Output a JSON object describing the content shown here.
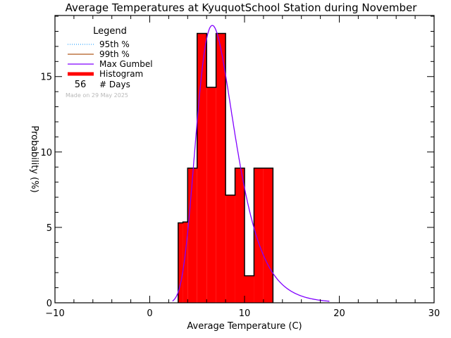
{
  "chart_data": {
    "type": "bar",
    "title": "Average Temperatures at KyuquotSchool Station during November",
    "xlabel": "Average Temperature (C)",
    "ylabel": "Probability (%)",
    "xlim": [
      -10,
      30
    ],
    "ylim": [
      0,
      19.05
    ],
    "x_ticks": [
      -10,
      0,
      10,
      20,
      30
    ],
    "x_tick_labels": [
      "−10",
      "0",
      "10",
      "20",
      "30"
    ],
    "y_ticks": [
      0,
      5,
      10,
      15
    ],
    "y_tick_labels": [
      "0",
      "5",
      "10",
      "15"
    ],
    "grid": false,
    "legend_position": "upper-left",
    "histogram": {
      "bins": [
        {
          "x0": 3,
          "x1": 3.5,
          "value": 5.3
        },
        {
          "x0": 3.5,
          "x1": 4,
          "value": 5.36
        },
        {
          "x0": 4,
          "x1": 5,
          "value": 8.93
        },
        {
          "x0": 5,
          "x1": 6,
          "value": 17.86
        },
        {
          "x0": 6,
          "x1": 7,
          "value": 14.29
        },
        {
          "x0": 7,
          "x1": 8,
          "value": 17.86
        },
        {
          "x0": 8,
          "x1": 9,
          "value": 7.14
        },
        {
          "x0": 9,
          "x1": 10,
          "value": 8.93
        },
        {
          "x0": 10,
          "x1": 11,
          "value": 1.79
        },
        {
          "x0": 11,
          "x1": 12,
          "value": 8.93
        },
        {
          "x0": 12,
          "x1": 13,
          "value": 8.93
        }
      ],
      "color": "#ff0000"
    },
    "series": [
      {
        "name": "Max Gumbel",
        "type": "line",
        "color": "#8000ff",
        "mu": 6.6,
        "beta": 2.0,
        "x_range": [
          2.4,
          19.0
        ]
      }
    ],
    "legend": {
      "title": "Legend",
      "entries": [
        {
          "label": "95th %",
          "style": "dotted",
          "color": "#0090ff"
        },
        {
          "label": "99th %",
          "style": "solid",
          "color": "#b05a1e"
        },
        {
          "label": "Max Gumbel",
          "style": "solid",
          "color": "#8000ff"
        },
        {
          "label": "Histogram",
          "style": "thick",
          "color": "#ff0000"
        }
      ],
      "days_count": "56",
      "days_label": "# Days"
    },
    "annotation": "Made on 29 May 2025"
  }
}
